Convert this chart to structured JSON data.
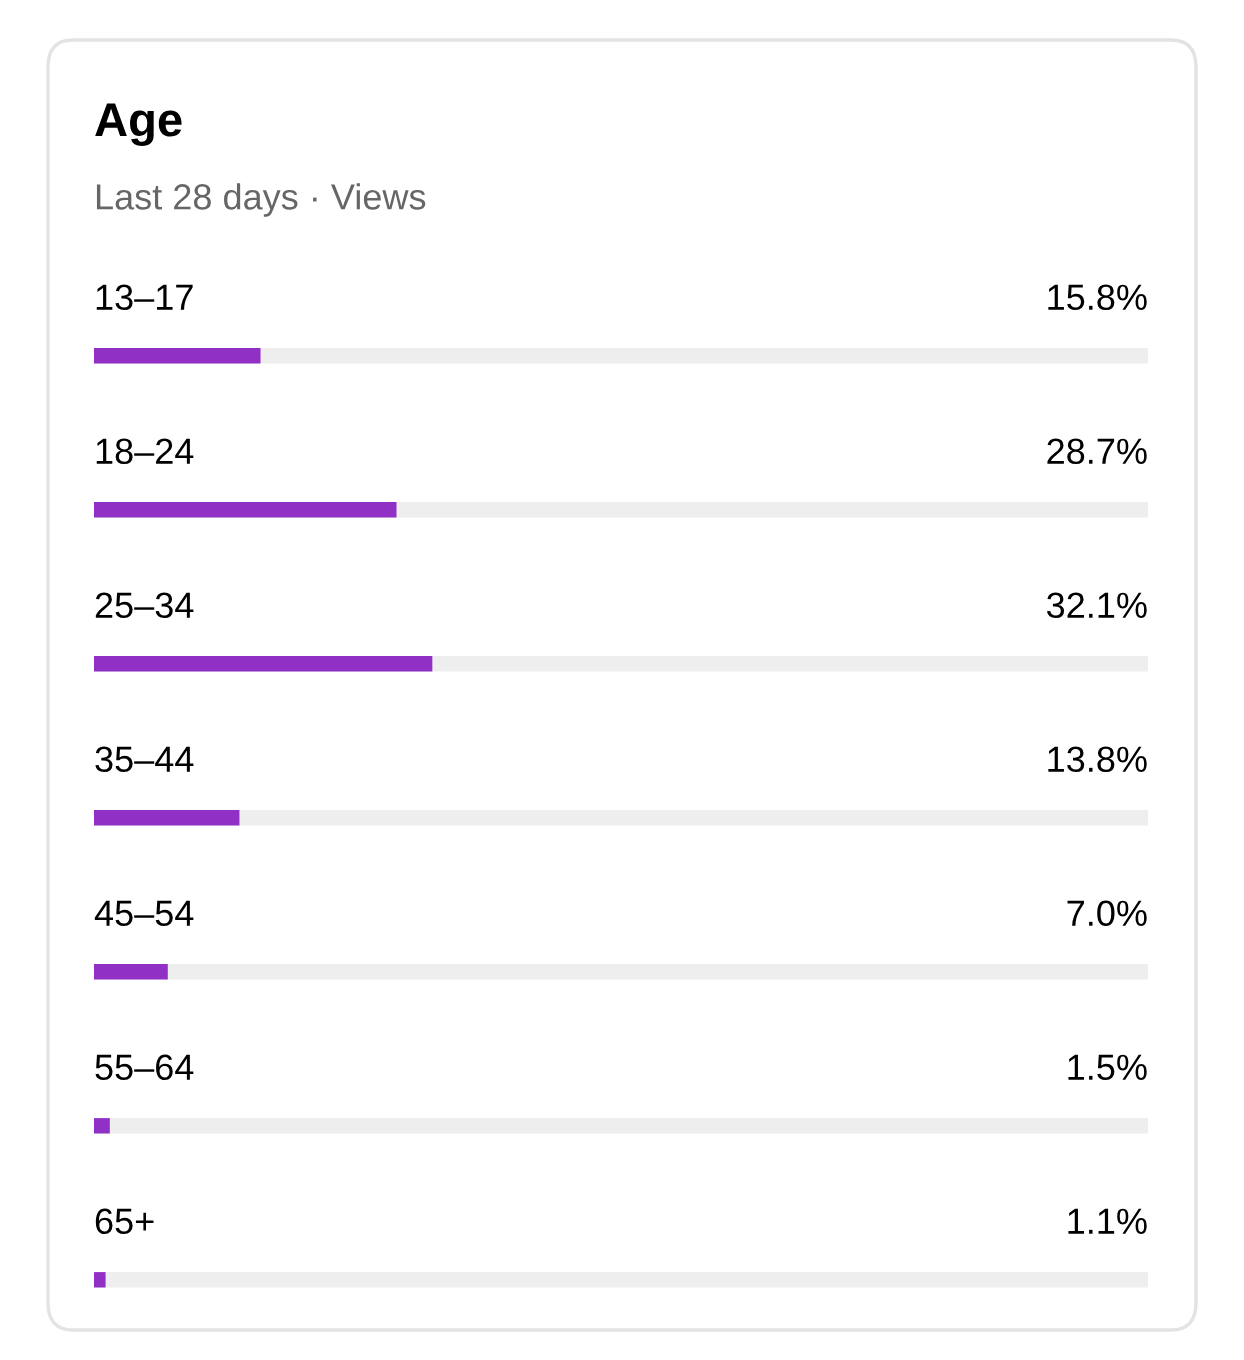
{
  "chart_data": {
    "type": "bar",
    "orientation": "horizontal",
    "title": "Age",
    "subtitle": "Last 28 days · Views",
    "categories": [
      "13–17",
      "18–24",
      "25–34",
      "35–44",
      "45–54",
      "55–64",
      "65+"
    ],
    "values": [
      15.8,
      28.7,
      32.1,
      13.8,
      7.0,
      1.5,
      1.1
    ],
    "value_labels": [
      "15.8%",
      "28.7%",
      "32.1%",
      "13.8%",
      "7.0%",
      "1.5%",
      "1.1%"
    ],
    "color": "#9130c4",
    "xlim": [
      0,
      100
    ]
  }
}
